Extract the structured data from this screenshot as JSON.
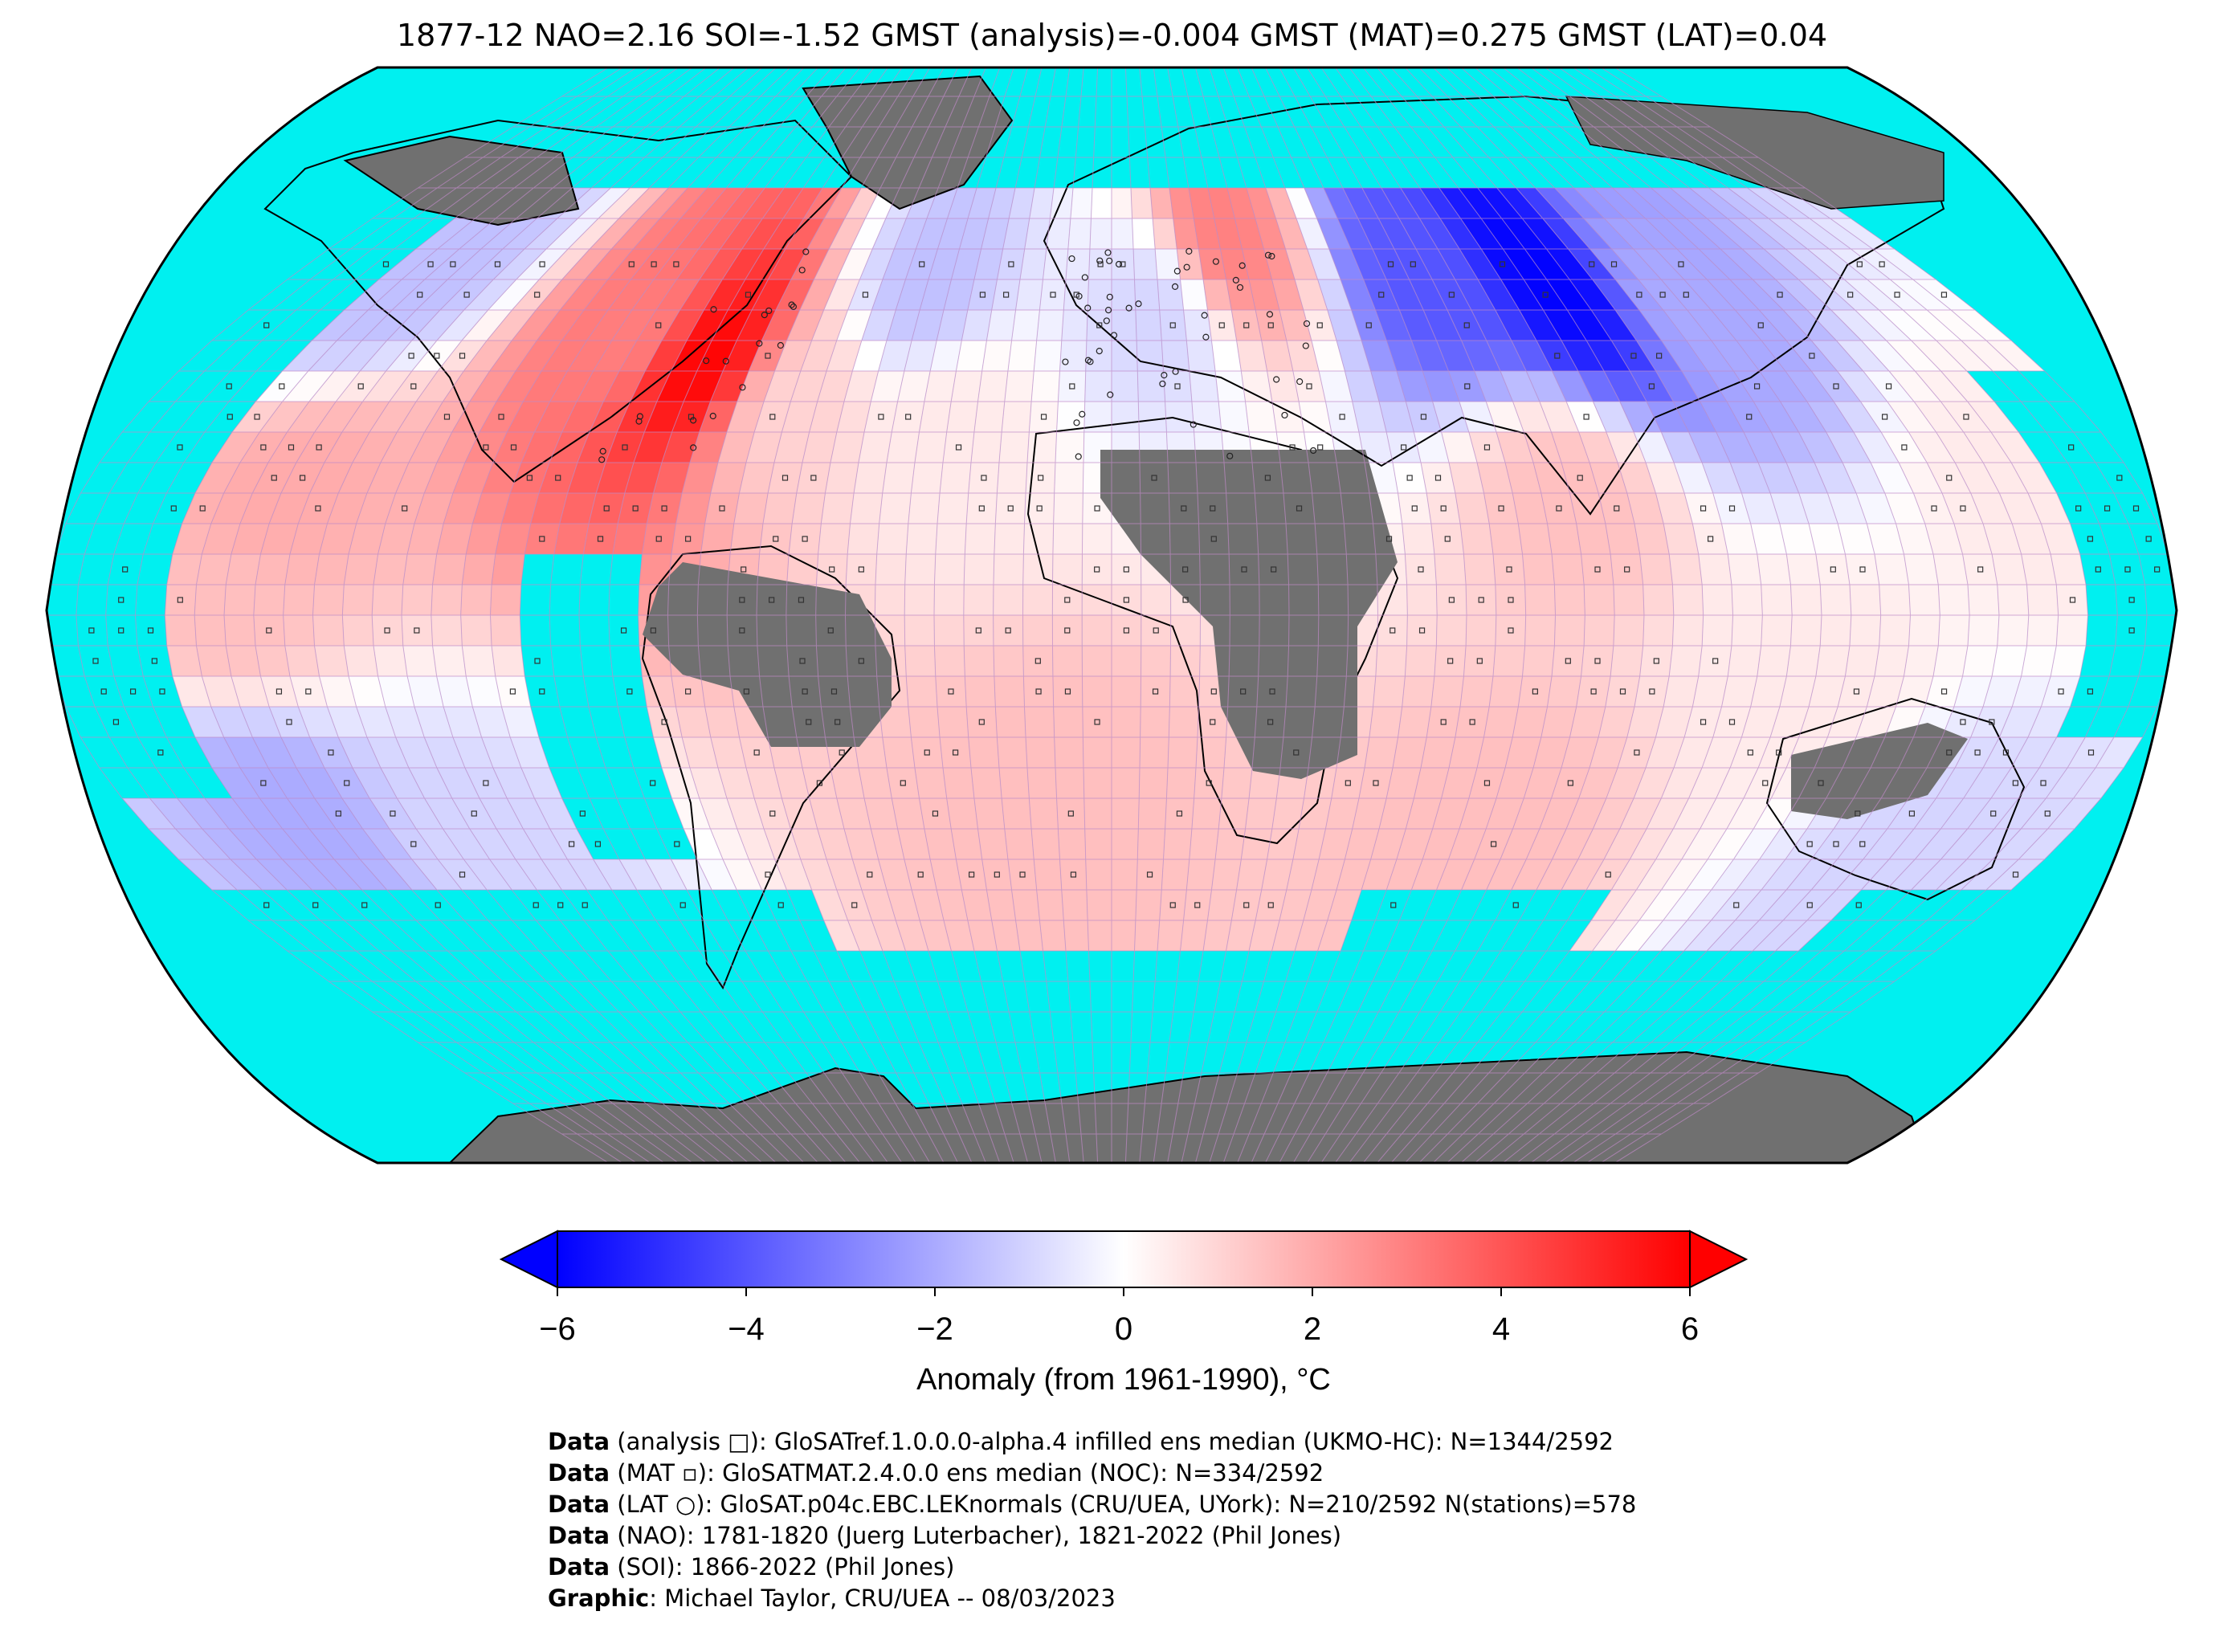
{
  "title": "1877-12 NAO=2.16 SOI=-1.52 GMST (analysis)=-0.004 GMST (MAT)=0.275 GMST (LAT)=0.04",
  "colors": {
    "ocean_missing": "#00f0f0",
    "land_missing": "#707070",
    "cold": "#0000ff",
    "neutral": "#ffffff",
    "warm": "#ff0000",
    "grid": "#c08ac8"
  },
  "chart_data": {
    "type": "heatmap",
    "projection": "Robinson",
    "value_range": [
      -6,
      6
    ],
    "anomaly_regions": [
      {
        "region": "Eastern North America",
        "anomaly": 6
      },
      {
        "region": "Central Siberia",
        "anomaly": -6
      },
      {
        "region": "Scandinavia",
        "anomaly": 3
      },
      {
        "region": "Eastern North Pacific",
        "anomaly": 2
      },
      {
        "region": "South Pacific",
        "anomaly": -2
      },
      {
        "region": "South Indian Ocean",
        "anomaly": 2
      },
      {
        "region": "Indian subcontinent",
        "anomaly": 1.5
      }
    ]
  },
  "colorbar": {
    "ticks": [
      "−6",
      "−4",
      "−2",
      "0",
      "2",
      "4",
      "6"
    ],
    "tick_values": [
      -6,
      -4,
      -2,
      0,
      2,
      4,
      6
    ],
    "label": "Anomaly (from 1961-1990), °C"
  },
  "credits": [
    {
      "bold": "Data",
      "text": " (analysis □): GloSATref.1.0.0.0-alpha.4 infilled ens median (UKMO-HC): N=1344/2592"
    },
    {
      "bold": "Data",
      "text": " (MAT ▫): GloSATMAT.2.4.0.0 ens median (NOC): N=334/2592"
    },
    {
      "bold": "Data",
      "text": " (LAT ○): GloSAT.p04c.EBC.LEKnormals (CRU/UEA, UYork): N=210/2592 N(stations)=578"
    },
    {
      "bold": "Data",
      "text": " (NAO): 1781-1820 (Juerg Luterbacher), 1821-2022 (Phil Jones)"
    },
    {
      "bold": "Data",
      "text": " (SOI): 1866-2022 (Phil Jones)"
    },
    {
      "bold": "Graphic",
      "text": ": Michael Taylor, CRU/UEA -- 08/03/2023"
    }
  ]
}
